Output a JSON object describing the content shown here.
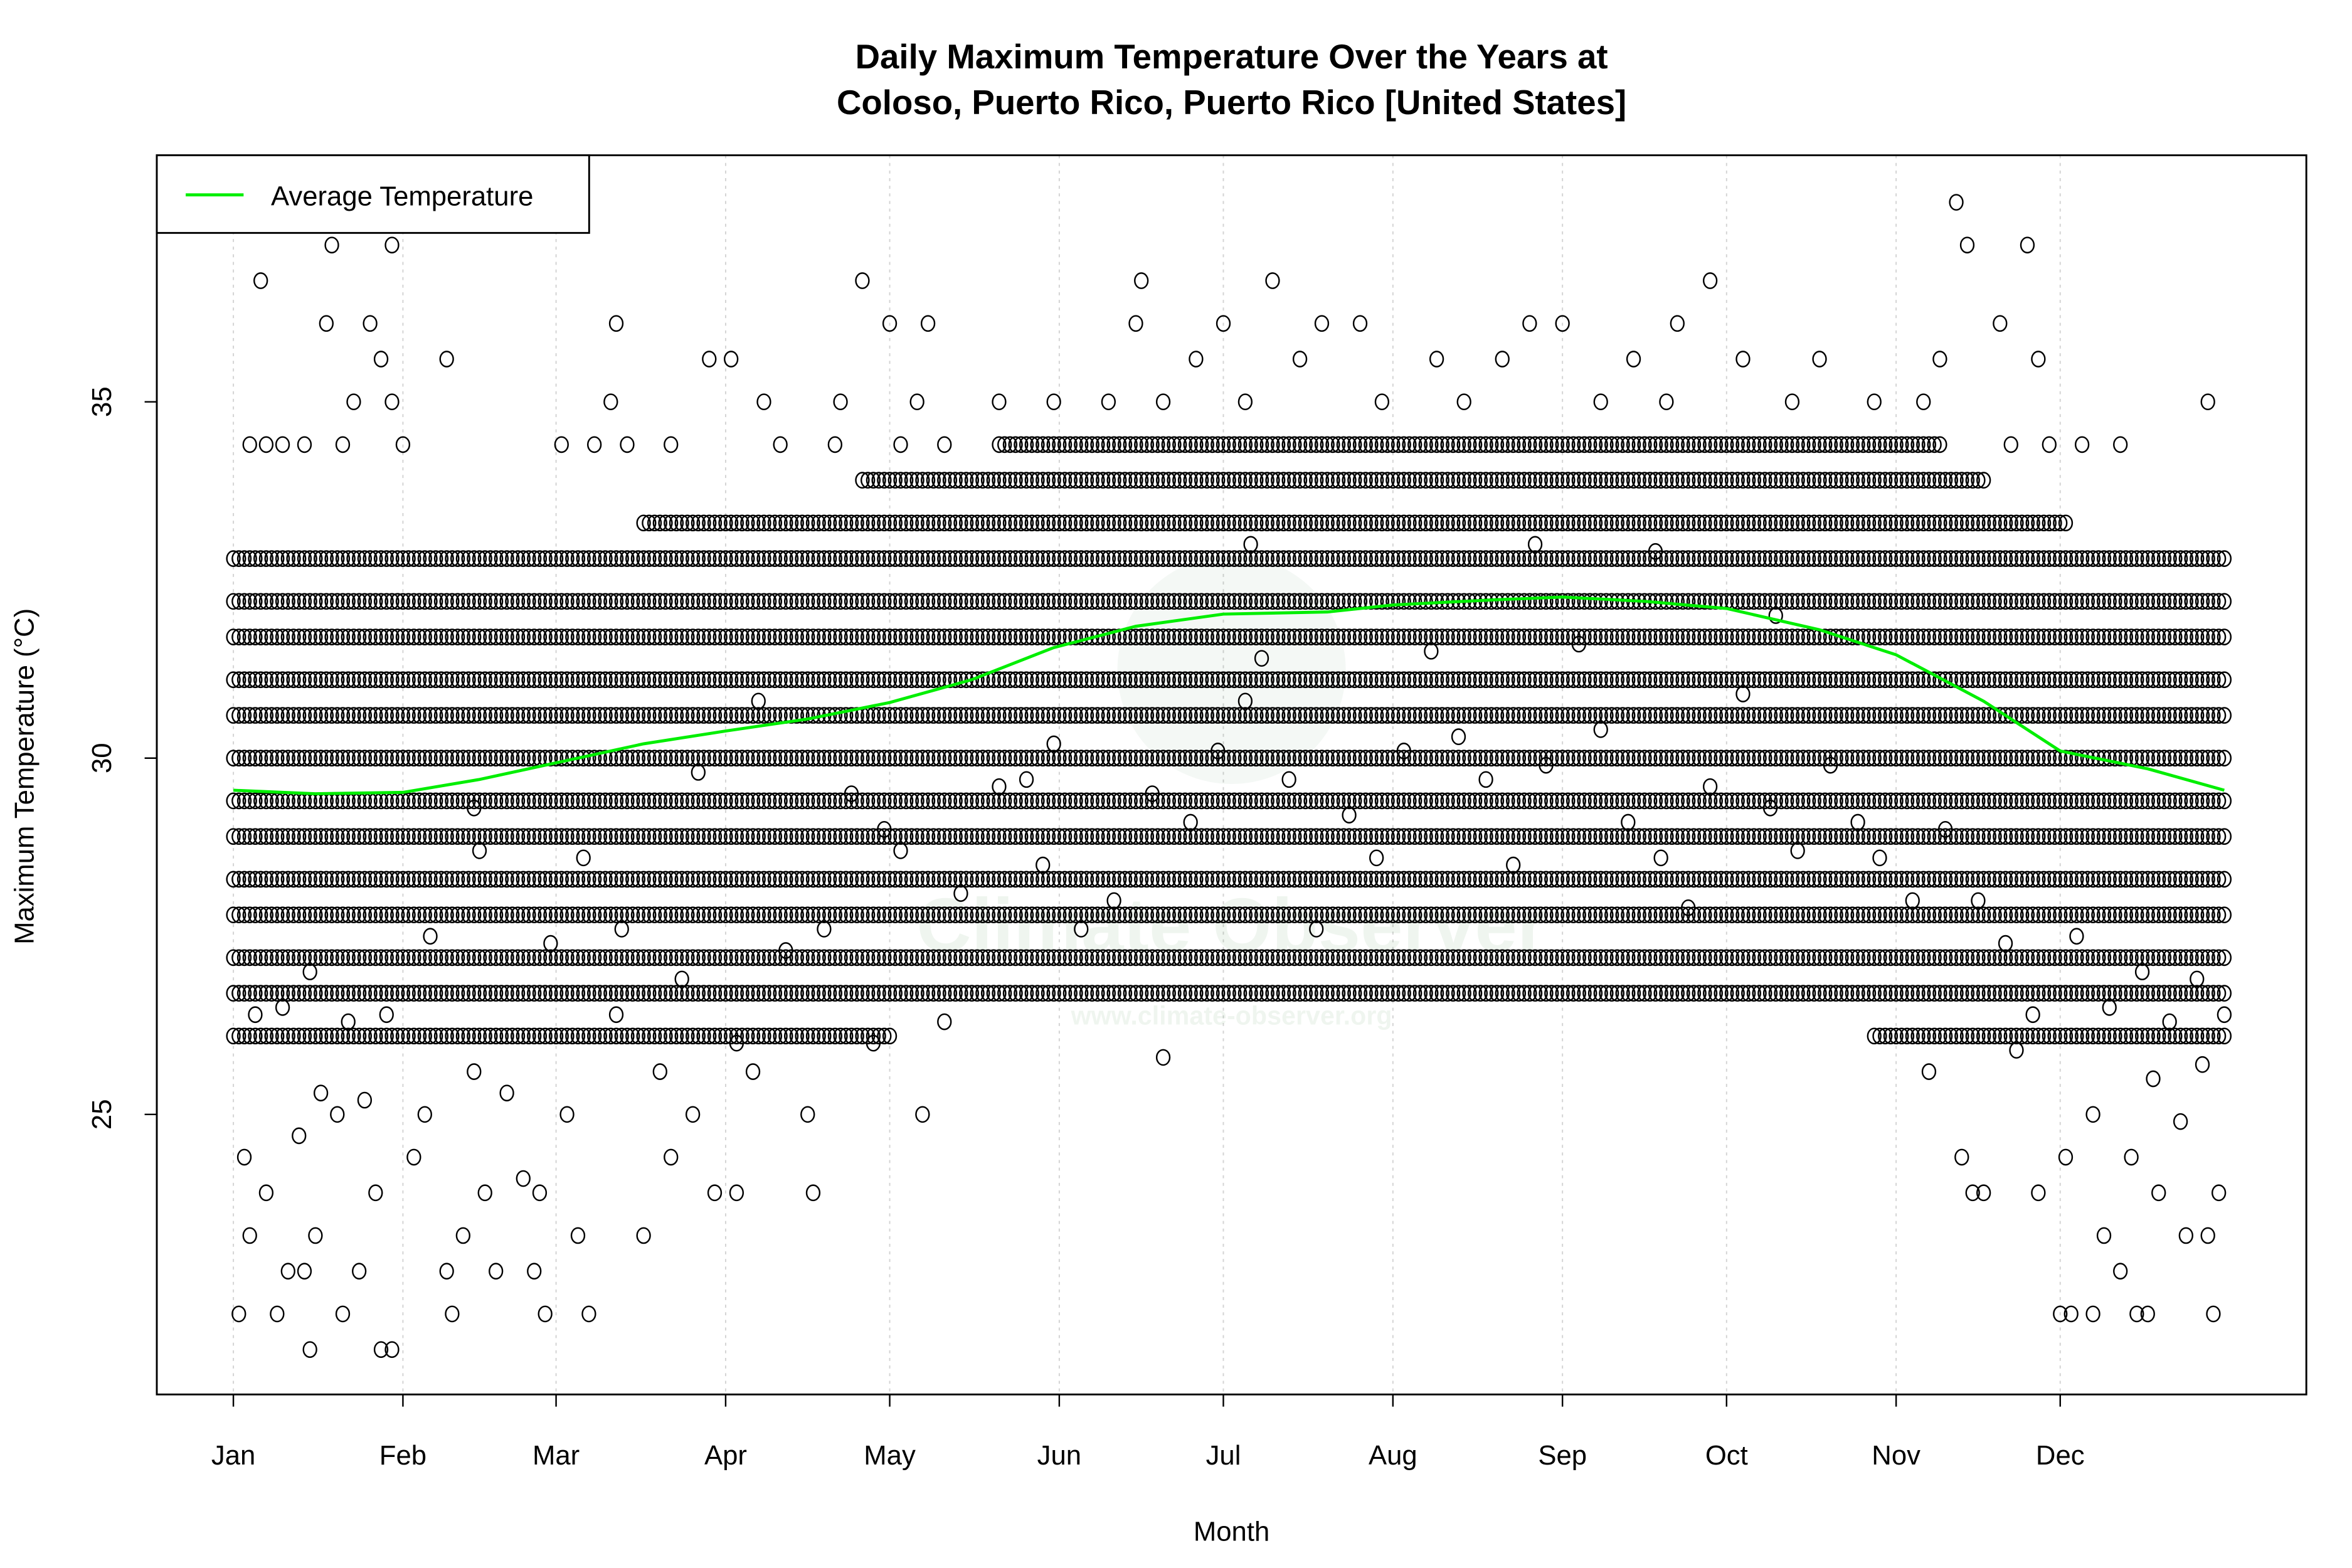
{
  "chart_data": {
    "type": "scatter",
    "title": "Daily Maximum Temperature Over the Years at\nColoso, Puerto Rico, Puerto Rico [United States]",
    "title_lines": [
      "Daily Maximum Temperature Over the Years at",
      "Coloso, Puerto Rico, Puerto Rico [United States]"
    ],
    "xlabel": "Month",
    "ylabel": "Maximum Temperature (°C)",
    "x_ticks": [
      {
        "label": "Jan",
        "day": 0
      },
      {
        "label": "Feb",
        "day": 31
      },
      {
        "label": "Mar",
        "day": 59
      },
      {
        "label": "Apr",
        "day": 90
      },
      {
        "label": "May",
        "day": 120
      },
      {
        "label": "Jun",
        "day": 151
      },
      {
        "label": "Jul",
        "day": 181
      },
      {
        "label": "Aug",
        "day": 212
      },
      {
        "label": "Sep",
        "day": 243
      },
      {
        "label": "Oct",
        "day": 273
      },
      {
        "label": "Nov",
        "day": 304
      },
      {
        "label": "Dec",
        "day": 334
      }
    ],
    "y_ticks": [
      25,
      30,
      35
    ],
    "xlim": [
      -14,
      379
    ],
    "ylim": [
      21.07,
      38.46
    ],
    "grid": "vertical dotted at month ticks",
    "legend": {
      "position": "top-left",
      "entries": [
        {
          "name": "Average Temperature",
          "color": "#00ee00"
        }
      ]
    },
    "scatter_bands": [
      {
        "value": 26.1,
        "days": [
          [
            0,
            120
          ],
          [
            300,
            364
          ]
        ]
      },
      {
        "value": 26.7,
        "days": [
          [
            0,
            364
          ]
        ]
      },
      {
        "value": 27.2,
        "days": [
          [
            0,
            364
          ]
        ]
      },
      {
        "value": 27.8,
        "days": [
          [
            0,
            364
          ]
        ]
      },
      {
        "value": 28.3,
        "days": [
          [
            0,
            364
          ]
        ]
      },
      {
        "value": 28.9,
        "days": [
          [
            0,
            364
          ]
        ]
      },
      {
        "value": 29.4,
        "days": [
          [
            0,
            364
          ]
        ]
      },
      {
        "value": 30.0,
        "days": [
          [
            0,
            364
          ]
        ]
      },
      {
        "value": 30.6,
        "days": [
          [
            0,
            364
          ]
        ]
      },
      {
        "value": 31.1,
        "days": [
          [
            0,
            364
          ]
        ]
      },
      {
        "value": 31.7,
        "days": [
          [
            0,
            364
          ]
        ]
      },
      {
        "value": 32.2,
        "days": [
          [
            0,
            364
          ]
        ]
      },
      {
        "value": 32.8,
        "days": [
          [
            0,
            364
          ]
        ]
      },
      {
        "value": 33.3,
        "days": [
          [
            75,
            335
          ]
        ]
      },
      {
        "value": 33.9,
        "days": [
          [
            115,
            320
          ]
        ]
      },
      {
        "value": 34.4,
        "days": [
          [
            140,
            312
          ]
        ]
      }
    ],
    "scatter_points": [
      [
        5,
        36.7
      ],
      [
        18,
        37.2
      ],
      [
        17,
        36.1
      ],
      [
        22,
        35.0
      ],
      [
        25,
        36.1
      ],
      [
        27,
        35.6
      ],
      [
        29,
        35.0
      ],
      [
        29,
        37.2
      ],
      [
        39,
        35.6
      ],
      [
        70,
        36.1
      ],
      [
        69,
        35.0
      ],
      [
        87,
        35.6
      ],
      [
        91,
        35.6
      ],
      [
        97,
        35.0
      ],
      [
        111,
        35.0
      ],
      [
        115,
        36.7
      ],
      [
        120,
        36.1
      ],
      [
        127,
        36.1
      ],
      [
        125,
        35.0
      ],
      [
        165,
        36.1
      ],
      [
        166,
        36.7
      ],
      [
        181,
        36.1
      ],
      [
        190,
        36.7
      ],
      [
        199,
        36.1
      ],
      [
        206,
        36.1
      ],
      [
        237,
        36.1
      ],
      [
        243,
        36.1
      ],
      [
        270,
        36.7
      ],
      [
        264,
        36.1
      ],
      [
        315,
        37.8
      ],
      [
        317,
        37.2
      ],
      [
        328,
        37.2
      ],
      [
        323,
        36.1
      ],
      [
        330,
        35.6
      ],
      [
        361,
        35.0
      ],
      [
        3,
        34.4
      ],
      [
        6,
        34.4
      ],
      [
        9,
        34.4
      ],
      [
        13,
        34.4
      ],
      [
        20,
        34.4
      ],
      [
        31,
        34.4
      ],
      [
        60,
        34.4
      ],
      [
        66,
        34.4
      ],
      [
        72,
        34.4
      ],
      [
        80,
        34.4
      ],
      [
        100,
        34.4
      ],
      [
        110,
        34.4
      ],
      [
        122,
        34.4
      ],
      [
        130,
        34.4
      ],
      [
        325,
        34.4
      ],
      [
        332,
        34.4
      ],
      [
        338,
        34.4
      ],
      [
        345,
        34.4
      ],
      [
        140,
        35.0
      ],
      [
        150,
        35.0
      ],
      [
        160,
        35.0
      ],
      [
        170,
        35.0
      ],
      [
        176,
        35.6
      ],
      [
        185,
        35.0
      ],
      [
        195,
        35.6
      ],
      [
        210,
        35.0
      ],
      [
        220,
        35.6
      ],
      [
        225,
        35.0
      ],
      [
        232,
        35.6
      ],
      [
        250,
        35.0
      ],
      [
        256,
        35.6
      ],
      [
        262,
        35.0
      ],
      [
        276,
        35.6
      ],
      [
        285,
        35.0
      ],
      [
        290,
        35.6
      ],
      [
        300,
        35.0
      ],
      [
        309,
        35.0
      ],
      [
        312,
        35.6
      ],
      [
        14,
        21.7
      ],
      [
        27,
        21.7
      ],
      [
        29,
        21.7
      ],
      [
        1,
        22.2
      ],
      [
        8,
        22.2
      ],
      [
        20,
        22.2
      ],
      [
        40,
        22.2
      ],
      [
        57,
        22.2
      ],
      [
        65,
        22.2
      ],
      [
        334,
        22.2
      ],
      [
        336,
        22.2
      ],
      [
        340,
        22.2
      ],
      [
        348,
        22.2
      ],
      [
        350,
        22.2
      ],
      [
        362,
        22.2
      ],
      [
        3,
        23.3
      ],
      [
        6,
        23.9
      ],
      [
        10,
        22.8
      ],
      [
        13,
        22.8
      ],
      [
        15,
        23.3
      ],
      [
        23,
        22.8
      ],
      [
        26,
        23.9
      ],
      [
        39,
        22.8
      ],
      [
        42,
        23.3
      ],
      [
        46,
        23.9
      ],
      [
        48,
        22.8
      ],
      [
        55,
        22.8
      ],
      [
        56,
        23.9
      ],
      [
        63,
        23.3
      ],
      [
        75,
        23.3
      ],
      [
        80,
        24.4
      ],
      [
        88,
        23.9
      ],
      [
        92,
        23.9
      ],
      [
        106,
        23.9
      ],
      [
        345,
        22.8
      ],
      [
        342,
        23.3
      ],
      [
        352,
        23.9
      ],
      [
        357,
        23.3
      ],
      [
        361,
        23.3
      ],
      [
        363,
        23.9
      ],
      [
        318,
        23.9
      ],
      [
        320,
        23.9
      ],
      [
        330,
        23.9
      ],
      [
        2,
        24.4
      ],
      [
        12,
        24.7
      ],
      [
        16,
        25.3
      ],
      [
        19,
        25.0
      ],
      [
        24,
        25.2
      ],
      [
        33,
        24.4
      ],
      [
        35,
        25.0
      ],
      [
        44,
        25.6
      ],
      [
        50,
        25.3
      ],
      [
        53,
        24.1
      ],
      [
        61,
        25.0
      ],
      [
        70,
        26.4
      ],
      [
        78,
        25.6
      ],
      [
        84,
        25.0
      ],
      [
        95,
        25.6
      ],
      [
        105,
        25.0
      ],
      [
        126,
        25.0
      ],
      [
        170,
        25.8
      ],
      [
        310,
        25.6
      ],
      [
        316,
        24.4
      ],
      [
        326,
        25.9
      ],
      [
        335,
        24.4
      ],
      [
        340,
        25.0
      ],
      [
        347,
        24.4
      ],
      [
        351,
        25.5
      ],
      [
        356,
        24.9
      ],
      [
        360,
        25.7
      ],
      [
        4,
        26.4
      ],
      [
        9,
        26.5
      ],
      [
        14,
        27.0
      ],
      [
        21,
        26.3
      ],
      [
        28,
        26.4
      ],
      [
        36,
        27.5
      ],
      [
        45,
        28.7
      ],
      [
        58,
        27.4
      ],
      [
        64,
        28.6
      ],
      [
        71,
        27.6
      ],
      [
        82,
        26.9
      ],
      [
        92,
        26.0
      ],
      [
        101,
        27.3
      ],
      [
        108,
        27.6
      ],
      [
        117,
        26.0
      ],
      [
        122,
        28.7
      ],
      [
        130,
        26.3
      ],
      [
        140,
        29.6
      ],
      [
        148,
        28.5
      ],
      [
        155,
        27.6
      ],
      [
        161,
        28.0
      ],
      [
        168,
        29.5
      ],
      [
        175,
        29.1
      ],
      [
        180,
        30.1
      ],
      [
        185,
        30.8
      ],
      [
        188,
        31.4
      ],
      [
        193,
        29.7
      ],
      [
        198,
        27.6
      ],
      [
        204,
        29.2
      ],
      [
        209,
        28.6
      ],
      [
        214,
        30.1
      ],
      [
        219,
        31.5
      ],
      [
        224,
        30.3
      ],
      [
        229,
        29.7
      ],
      [
        234,
        28.5
      ],
      [
        240,
        29.9
      ],
      [
        246,
        31.6
      ],
      [
        250,
        30.4
      ],
      [
        255,
        29.1
      ],
      [
        261,
        28.6
      ],
      [
        266,
        27.9
      ],
      [
        270,
        29.6
      ],
      [
        276,
        30.9
      ],
      [
        281,
        29.3
      ],
      [
        286,
        28.7
      ],
      [
        292,
        29.9
      ],
      [
        297,
        29.1
      ],
      [
        301,
        28.6
      ],
      [
        307,
        28.0
      ],
      [
        313,
        29.0
      ],
      [
        319,
        28.0
      ],
      [
        324,
        27.4
      ],
      [
        329,
        26.4
      ],
      [
        337,
        27.5
      ],
      [
        343,
        26.5
      ],
      [
        349,
        27.0
      ],
      [
        354,
        26.3
      ],
      [
        359,
        26.9
      ],
      [
        364,
        26.4
      ],
      [
        44,
        29.3
      ],
      [
        85,
        29.8
      ],
      [
        96,
        30.8
      ],
      [
        113,
        29.5
      ],
      [
        119,
        29.0
      ],
      [
        133,
        28.1
      ],
      [
        186,
        33.0
      ],
      [
        238,
        33.0
      ],
      [
        260,
        32.9
      ],
      [
        282,
        32.0
      ],
      [
        150,
        30.2
      ],
      [
        145,
        29.7
      ]
    ],
    "series": [
      {
        "name": "Average Temperature",
        "color": "#00ee00",
        "x": [
          0,
          15,
          31,
          45,
          60,
          75,
          90,
          105,
          120,
          135,
          150,
          165,
          181,
          200,
          212,
          230,
          243,
          258,
          273,
          290,
          304,
          320,
          334,
          350,
          364
        ],
        "y": [
          29.55,
          29.5,
          29.52,
          29.7,
          29.95,
          30.2,
          30.38,
          30.55,
          30.78,
          31.1,
          31.55,
          31.85,
          32.02,
          32.05,
          32.15,
          32.22,
          32.26,
          32.2,
          32.1,
          31.8,
          31.45,
          30.8,
          30.1,
          29.85,
          29.55
        ]
      }
    ]
  },
  "watermark": {
    "name": "Climate Observer",
    "url": "www.climate-observer.org"
  }
}
